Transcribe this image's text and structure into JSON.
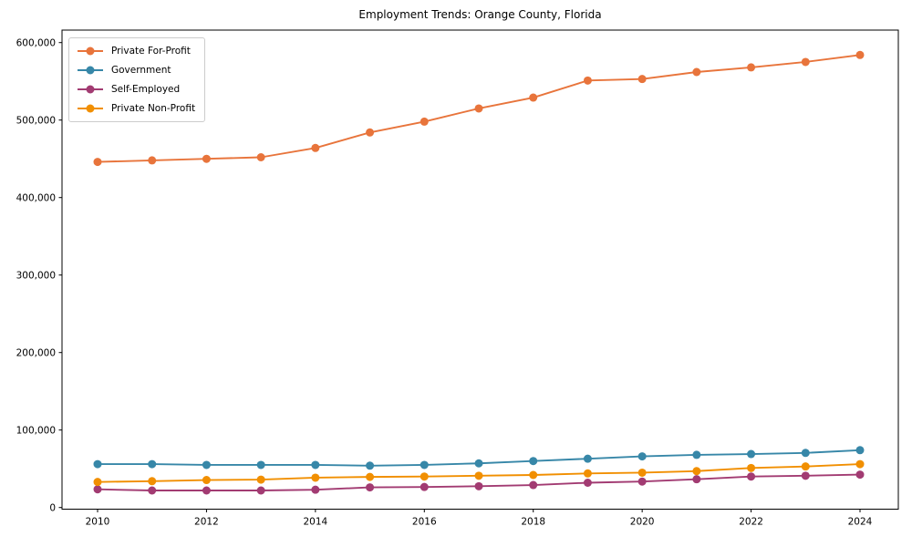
{
  "chart_data": {
    "type": "line",
    "title": "Employment Trends: Orange County, Florida",
    "xlabel": "",
    "ylabel": "",
    "grid": false,
    "legend_position": "upper-left",
    "background": "#ffffff",
    "axis_color": "#000000",
    "x": [
      2010,
      2011,
      2012,
      2013,
      2014,
      2015,
      2016,
      2017,
      2018,
      2019,
      2020,
      2021,
      2022,
      2023,
      2024
    ],
    "series": [
      {
        "name": "Private For-Profit",
        "color": "#E8743B",
        "values": [
          446000,
          448000,
          450000,
          452000,
          464000,
          484000,
          498000,
          515000,
          529000,
          551000,
          553000,
          562000,
          568000,
          575000,
          584000
        ]
      },
      {
        "name": "Government",
        "color": "#3787A8",
        "values": [
          56000,
          56000,
          55000,
          55000,
          55000,
          54000,
          55000,
          57000,
          60000,
          63000,
          66000,
          68000,
          69000,
          70500,
          74000
        ]
      },
      {
        "name": "Self-Employed",
        "color": "#A23B72",
        "values": [
          23500,
          22000,
          22000,
          22000,
          23000,
          26000,
          26500,
          27500,
          29000,
          32000,
          33500,
          36500,
          40000,
          41000,
          42500
        ]
      },
      {
        "name": "Private Non-Profit",
        "color": "#F18F01",
        "values": [
          33000,
          34000,
          35500,
          36000,
          38500,
          39500,
          40000,
          41000,
          42000,
          44000,
          45000,
          47000,
          51000,
          53000,
          56000
        ]
      }
    ],
    "xticks": [
      "2010",
      "2012",
      "2014",
      "2016",
      "2018",
      "2020",
      "2022",
      "2024"
    ],
    "yticks": [
      0,
      100000,
      200000,
      300000,
      400000,
      500000,
      600000
    ],
    "ytick_labels": [
      "0",
      "100,000",
      "200,000",
      "300,000",
      "400,000",
      "500,000",
      "600,000"
    ],
    "ylim": [
      0,
      616000
    ],
    "xlim": [
      2010,
      2024
    ]
  }
}
